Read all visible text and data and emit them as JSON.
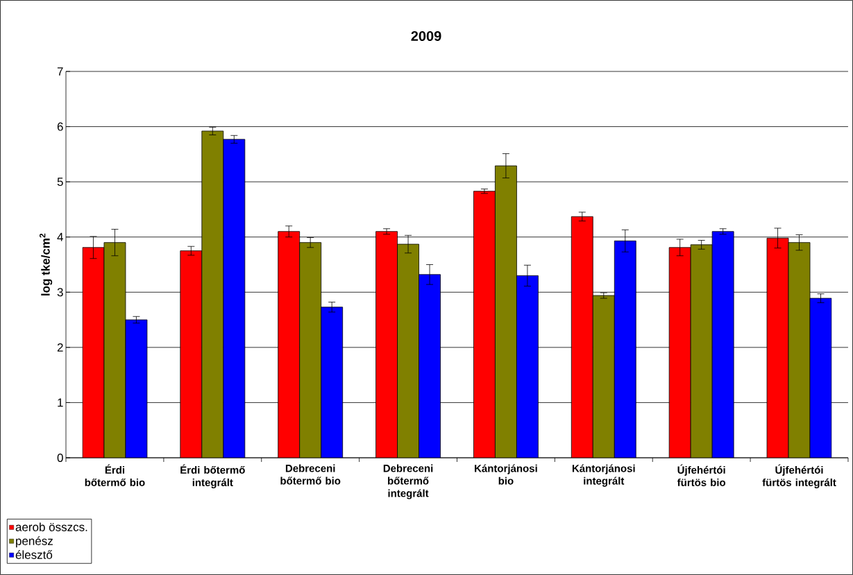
{
  "chart_data": {
    "type": "bar",
    "title": "2009",
    "ylabel": "log tke/cm$^{2}$",
    "categories": [
      "Érdi bőtermő bio",
      "Érdi bőtermő integrált",
      "Debreceni bőtermő bio",
      "Debreceni bőtermő integrált",
      "Kántorjánosi bio",
      "Kántorjánosi integrált",
      "Újfehértói fürtös bio",
      "Újfehértói fürtös integrált"
    ],
    "series": [
      {
        "name": "aerob összcs.",
        "color": "#ff0000",
        "values": [
          3.81,
          3.75,
          4.1,
          4.1,
          4.83,
          4.37,
          3.81,
          3.98
        ],
        "errors": [
          0.2,
          0.08,
          0.1,
          0.05,
          0.04,
          0.08,
          0.15,
          0.18
        ]
      },
      {
        "name": "penész",
        "color": "#808000",
        "values": [
          3.9,
          5.92,
          3.9,
          3.87,
          5.29,
          2.94,
          3.86,
          3.9
        ],
        "errors": [
          0.24,
          0.07,
          0.09,
          0.16,
          0.22,
          0.05,
          0.08,
          0.14
        ]
      },
      {
        "name": "élesztő",
        "color": "#0000ff",
        "values": [
          2.5,
          5.77,
          2.73,
          3.32,
          3.3,
          3.93,
          4.1,
          2.89
        ],
        "errors": [
          0.06,
          0.07,
          0.09,
          0.18,
          0.19,
          0.2,
          0.05,
          0.08
        ]
      }
    ],
    "ylim": [
      0,
      7
    ],
    "yticks": [
      0,
      1,
      2,
      3,
      4,
      5,
      6,
      7
    ],
    "grid": "y",
    "legend": "bottom left"
  }
}
